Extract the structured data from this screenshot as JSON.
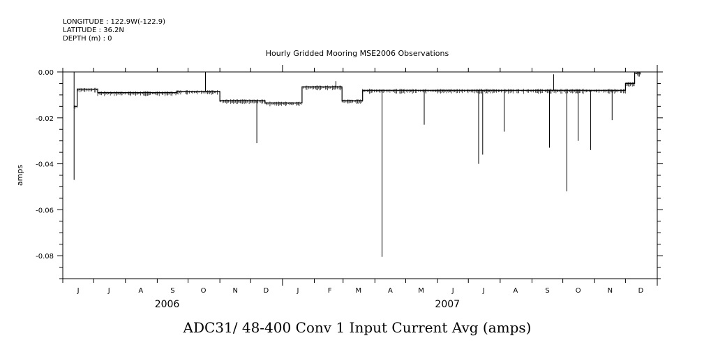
{
  "header": {
    "longitude": "LONGITUDE : 122.9W(-122.9)",
    "latitude": "LATITUDE : 36.2N",
    "depth": "DEPTH (m) : 0"
  },
  "chart_data": {
    "type": "line",
    "title": "Hourly Gridded Mooring MSE2006 Observations",
    "xlabel": "ADC31/ 48-400 Conv 1 Input Current  Avg (amps)",
    "ylabel": "amps",
    "ylim": [
      -0.09,
      0.0
    ],
    "yticks": [
      0.0,
      -0.02,
      -0.04,
      -0.06,
      -0.08
    ],
    "ytick_labels": [
      "0.00",
      "-0.02",
      "-0.04",
      "-0.06",
      "-0.08"
    ],
    "month_labels": [
      "J",
      "J",
      "A",
      "S",
      "O",
      "N",
      "D",
      "J",
      "F",
      "M",
      "A",
      "M",
      "J",
      "J",
      "A",
      "S",
      "O",
      "N",
      "D"
    ],
    "year_labels": [
      "2006",
      "2007"
    ],
    "xlim": [
      "2006-06-01",
      "2008-01-01"
    ],
    "grid": false,
    "baseline_segments": [
      {
        "start": "2006-06-12",
        "end": "2006-06-15",
        "value": -0.015
      },
      {
        "start": "2006-06-15",
        "end": "2006-07-05",
        "value": -0.0075
      },
      {
        "start": "2006-07-05",
        "end": "2006-09-20",
        "value": -0.009
      },
      {
        "start": "2006-09-20",
        "end": "2006-10-20",
        "value": -0.0085
      },
      {
        "start": "2006-10-20",
        "end": "2006-11-01",
        "value": -0.0085
      },
      {
        "start": "2006-11-01",
        "end": "2006-12-15",
        "value": -0.0125
      },
      {
        "start": "2006-12-15",
        "end": "2007-01-20",
        "value": -0.0135
      },
      {
        "start": "2007-01-20",
        "end": "2007-02-28",
        "value": -0.0065
      },
      {
        "start": "2007-02-28",
        "end": "2007-03-20",
        "value": -0.0125
      },
      {
        "start": "2007-03-20",
        "end": "2007-12-01",
        "value": -0.008
      },
      {
        "start": "2007-12-01",
        "end": "2007-12-10",
        "value": -0.005
      },
      {
        "start": "2007-12-10",
        "end": "2007-12-16",
        "value": -0.0005
      }
    ],
    "spikes": [
      {
        "x": "2006-06-12",
        "y": -0.047
      },
      {
        "x": "2006-06-12",
        "y": 0.0
      },
      {
        "x": "2006-10-18",
        "y": 0.0
      },
      {
        "x": "2006-12-07",
        "y": -0.031
      },
      {
        "x": "2007-02-22",
        "y": -0.004
      },
      {
        "x": "2007-04-08",
        "y": -0.0805
      },
      {
        "x": "2007-05-19",
        "y": -0.023
      },
      {
        "x": "2007-07-11",
        "y": -0.04
      },
      {
        "x": "2007-07-15",
        "y": -0.036
      },
      {
        "x": "2007-08-05",
        "y": -0.026
      },
      {
        "x": "2007-09-18",
        "y": -0.033
      },
      {
        "x": "2007-09-22",
        "y": -0.001
      },
      {
        "x": "2007-10-05",
        "y": -0.052
      },
      {
        "x": "2007-10-16",
        "y": -0.03
      },
      {
        "x": "2007-10-28",
        "y": -0.034
      },
      {
        "x": "2007-11-18",
        "y": -0.021
      }
    ]
  }
}
